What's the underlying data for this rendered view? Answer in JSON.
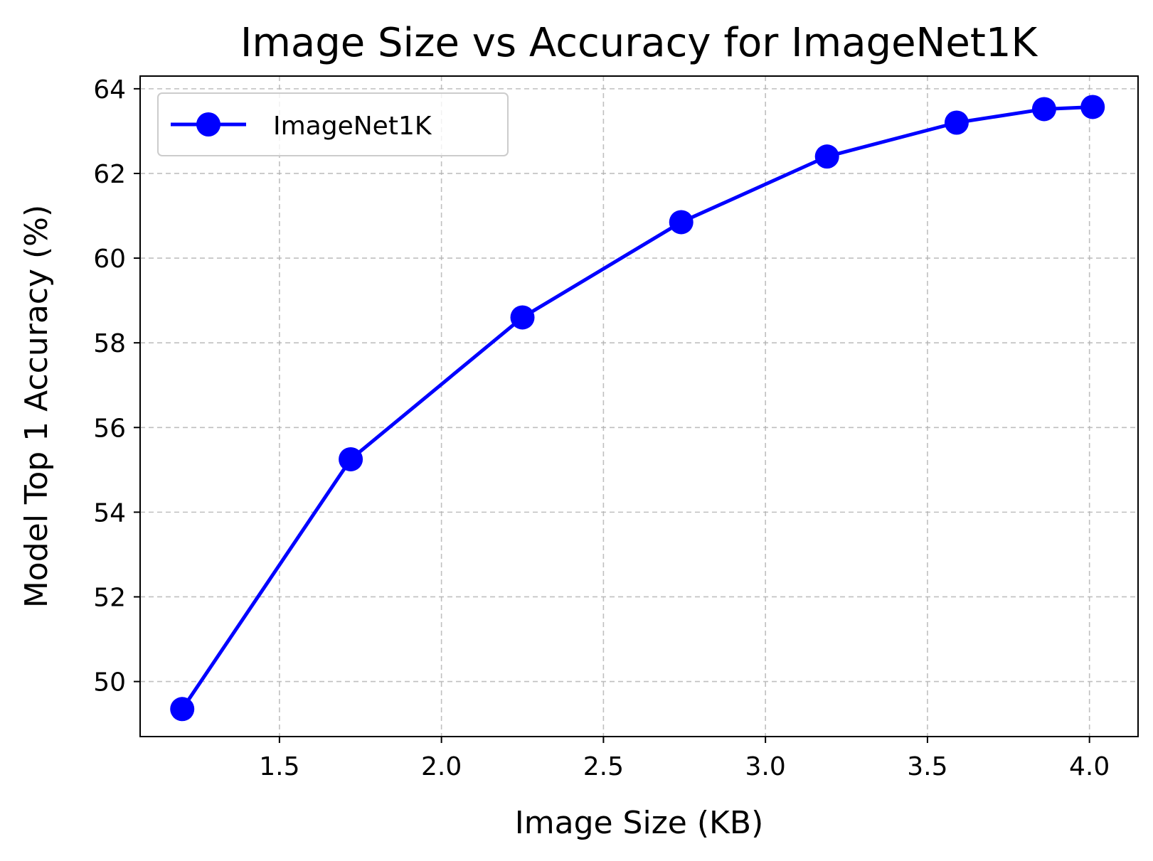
{
  "chart_data": {
    "type": "line",
    "title": "Image Size vs Accuracy for ImageNet1K",
    "xlabel": "Image Size (KB)",
    "ylabel": "Model Top 1 Accuracy (%)",
    "xlim": [
      1.07,
      4.15
    ],
    "ylim": [
      48.7,
      64.3
    ],
    "x_ticks": [
      1.5,
      2.0,
      2.5,
      3.0,
      3.5,
      4.0
    ],
    "x_tick_labels": [
      "1.5",
      "2.0",
      "2.5",
      "3.0",
      "3.5",
      "4.0"
    ],
    "y_ticks": [
      50,
      52,
      54,
      56,
      58,
      60,
      62,
      64
    ],
    "y_tick_labels": [
      "50",
      "52",
      "54",
      "56",
      "58",
      "60",
      "62",
      "64"
    ],
    "grid": true,
    "legend_position": "top-left",
    "series": [
      {
        "name": "ImageNet1K",
        "color": "#0000ff",
        "marker": "circle",
        "x": [
          1.2,
          1.72,
          2.25,
          2.74,
          3.19,
          3.59,
          3.86,
          4.01
        ],
        "y": [
          49.35,
          55.25,
          58.6,
          60.85,
          62.4,
          63.2,
          63.52,
          63.57
        ]
      }
    ]
  }
}
